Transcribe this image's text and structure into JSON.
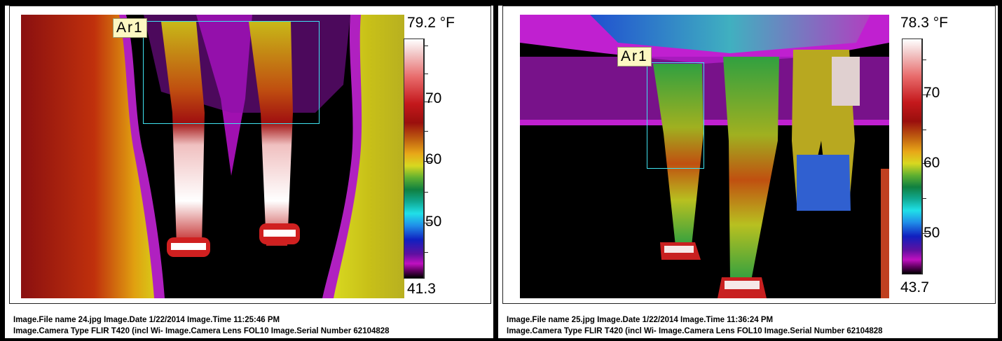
{
  "left": {
    "roi_label": "Ar1",
    "scale_max": "79.2 °F",
    "scale_min": "41.3",
    "tick_labels": [
      "70",
      "60",
      "50"
    ],
    "caption_line1": "Image.File name 24.jpg   Image.Date 1/22/2014   Image.Time 11:25:46 PM",
    "caption_line2": "Image.Camera Type FLIR T420 (incl Wi-   Image.Camera Lens FOL10   Image.Serial Number 62104828"
  },
  "right": {
    "roi_label": "Ar1",
    "scale_max": "78.3 °F",
    "scale_min": "43.7",
    "tick_labels": [
      "70",
      "60",
      "50"
    ],
    "caption_line1": "Image.File name 25.jpg   Image.Date 1/22/2014   Image.Time 11:36:24 PM",
    "caption_line2": "Image.Camera Type FLIR T420 (incl Wi-   Image.Camera Lens FOL10   Image.Serial Number 62104828"
  },
  "colors": {
    "roi_outline": "#3fe3f0",
    "label_background": "#fdf8c2",
    "page_background": "#000000"
  }
}
